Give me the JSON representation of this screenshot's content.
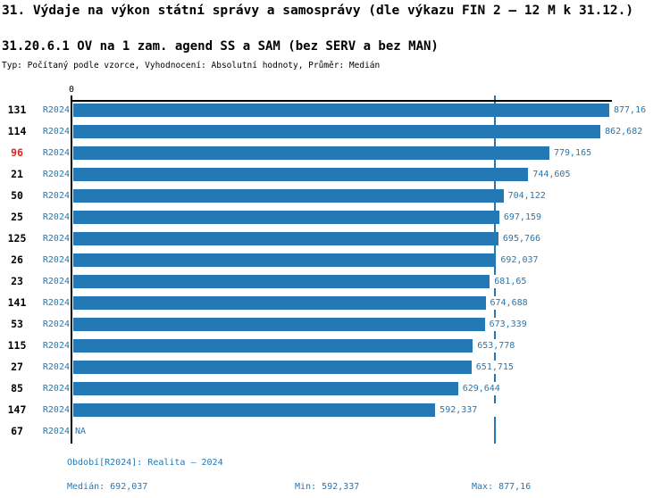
{
  "palette": {
    "bar_blue": "#2478b4",
    "text_blue": "#2478b4",
    "highlight_red": "#dd2222",
    "axis_black": "#000000"
  },
  "header": {
    "title": "31. Výdaje na výkon státní správy a samosprávy (dle výkazu FIN 2 – 12 M k 31.12.)",
    "subtitle": "31.20.6.1 OV na 1 zam. agend SS a SAM (bez SERV a bez MAN)",
    "meta": "Typ: Počítaný podle vzorce, Vyhodnocení: Absolutní hodnoty, Průměr: Medián"
  },
  "chart_data": {
    "type": "bar",
    "orientation": "horizontal",
    "x_origin_label": "0",
    "xlim": [
      0,
      877.16
    ],
    "scale_max": 877.16,
    "median_value": 692.037,
    "series_label": "R2024",
    "rows": [
      {
        "rank": "131",
        "series": "R2024",
        "value": 877.16,
        "label": "877,16",
        "highlighted": false
      },
      {
        "rank": "114",
        "series": "R2024",
        "value": 862.682,
        "label": "862,682",
        "highlighted": false
      },
      {
        "rank": "96",
        "series": "R2024",
        "value": 779.165,
        "label": "779,165",
        "highlighted": true
      },
      {
        "rank": "21",
        "series": "R2024",
        "value": 744.605,
        "label": "744,605",
        "highlighted": false
      },
      {
        "rank": "50",
        "series": "R2024",
        "value": 704.122,
        "label": "704,122",
        "highlighted": false
      },
      {
        "rank": "25",
        "series": "R2024",
        "value": 697.159,
        "label": "697,159",
        "highlighted": false
      },
      {
        "rank": "125",
        "series": "R2024",
        "value": 695.766,
        "label": "695,766",
        "highlighted": false
      },
      {
        "rank": "26",
        "series": "R2024",
        "value": 692.037,
        "label": "692,037",
        "highlighted": false
      },
      {
        "rank": "23",
        "series": "R2024",
        "value": 681.65,
        "label": "681,65",
        "highlighted": false
      },
      {
        "rank": "141",
        "series": "R2024",
        "value": 674.688,
        "label": "674,688",
        "highlighted": false
      },
      {
        "rank": "53",
        "series": "R2024",
        "value": 673.339,
        "label": "673,339",
        "highlighted": false
      },
      {
        "rank": "115",
        "series": "R2024",
        "value": 653.778,
        "label": "653,778",
        "highlighted": false
      },
      {
        "rank": "27",
        "series": "R2024",
        "value": 651.715,
        "label": "651,715",
        "highlighted": false
      },
      {
        "rank": "85",
        "series": "R2024",
        "value": 629.644,
        "label": "629,644",
        "highlighted": false
      },
      {
        "rank": "147",
        "series": "R2024",
        "value": 592.337,
        "label": "592,337",
        "highlighted": false
      },
      {
        "rank": "67",
        "series": "R2024",
        "value": null,
        "label": "NA",
        "highlighted": false
      }
    ]
  },
  "footer": {
    "period": "Období[R2024]: Realita – 2024",
    "median": "Medián: 692,037",
    "min": "Min: 592,337",
    "max": "Max: 877,16"
  }
}
